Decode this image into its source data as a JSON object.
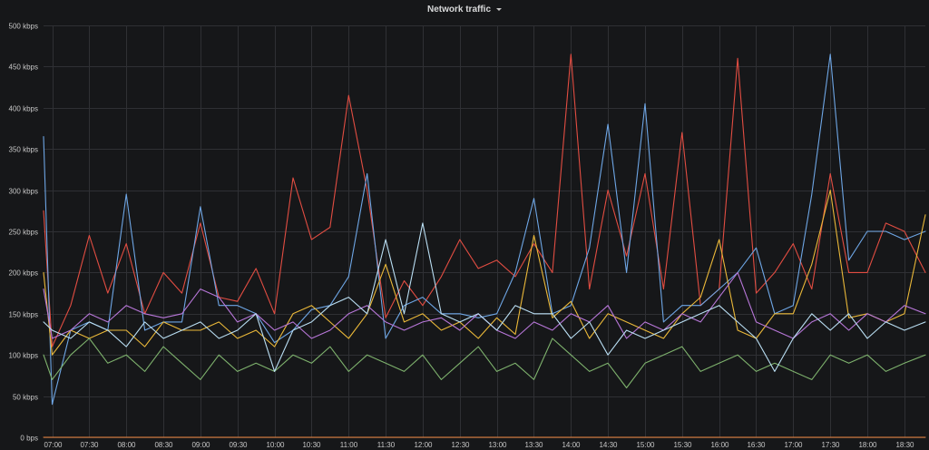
{
  "panel": {
    "title": "Network traffic"
  },
  "chart_data": {
    "type": "line",
    "title": "Network traffic",
    "grid": true,
    "legend": "none",
    "x_domain": [
      "06:53",
      "18:47"
    ],
    "y_range_bps": [
      0,
      500000
    ],
    "y_ticks": [
      {
        "value": 0,
        "label": "0 bps"
      },
      {
        "value": 50000,
        "label": "50 kbps"
      },
      {
        "value": 100000,
        "label": "100 kbps"
      },
      {
        "value": 150000,
        "label": "150 kbps"
      },
      {
        "value": 200000,
        "label": "200 kbps"
      },
      {
        "value": 250000,
        "label": "250 kbps"
      },
      {
        "value": 300000,
        "label": "300 kbps"
      },
      {
        "value": 350000,
        "label": "350 kbps"
      },
      {
        "value": 400000,
        "label": "400 kbps"
      },
      {
        "value": 450000,
        "label": "450 kbps"
      },
      {
        "value": 500000,
        "label": "500 kbps"
      }
    ],
    "x_ticks": [
      "07:00",
      "07:30",
      "08:00",
      "08:30",
      "09:00",
      "09:30",
      "10:00",
      "10:30",
      "11:00",
      "11:30",
      "12:00",
      "12:30",
      "13:00",
      "13:30",
      "14:00",
      "14:30",
      "15:00",
      "15:30",
      "16:00",
      "16:30",
      "17:00",
      "17:30",
      "18:00",
      "18:30"
    ],
    "x": [
      "06:53",
      "07:00",
      "07:15",
      "07:30",
      "07:45",
      "08:00",
      "08:15",
      "08:30",
      "08:45",
      "09:00",
      "09:15",
      "09:30",
      "09:45",
      "10:00",
      "10:15",
      "10:30",
      "10:45",
      "11:00",
      "11:15",
      "11:30",
      "11:45",
      "12:00",
      "12:15",
      "12:30",
      "12:45",
      "13:00",
      "13:15",
      "13:30",
      "13:45",
      "14:00",
      "14:15",
      "14:30",
      "14:45",
      "15:00",
      "15:15",
      "15:30",
      "15:45",
      "16:00",
      "16:15",
      "16:30",
      "16:45",
      "17:00",
      "17:15",
      "17:30",
      "17:45",
      "18:00",
      "18:15",
      "18:30",
      "18:47"
    ],
    "series": [
      {
        "color": "#e24d42",
        "values": [
          275,
          110,
          160,
          245,
          175,
          235,
          150,
          200,
          175,
          260,
          170,
          165,
          205,
          150,
          315,
          240,
          255,
          415,
          300,
          145,
          190,
          160,
          195,
          240,
          205,
          215,
          195,
          235,
          200,
          465,
          180,
          300,
          220,
          320,
          180,
          370,
          160,
          180,
          460,
          175,
          200,
          235,
          180,
          320,
          200,
          200,
          260,
          250,
          200
        ]
      },
      {
        "color": "#6ea6e5",
        "values": [
          365,
          40,
          130,
          140,
          130,
          295,
          130,
          140,
          140,
          280,
          160,
          160,
          150,
          115,
          130,
          155,
          160,
          195,
          320,
          120,
          160,
          170,
          150,
          150,
          145,
          150,
          200,
          290,
          150,
          160,
          230,
          380,
          200,
          405,
          140,
          160,
          160,
          180,
          200,
          230,
          150,
          160,
          295,
          465,
          215,
          250,
          250,
          240,
          250
        ]
      },
      {
        "color": "#eab839",
        "values": [
          200,
          100,
          130,
          120,
          130,
          130,
          110,
          140,
          130,
          130,
          140,
          120,
          130,
          110,
          150,
          160,
          140,
          120,
          150,
          210,
          140,
          150,
          130,
          140,
          120,
          145,
          125,
          245,
          145,
          165,
          120,
          150,
          140,
          130,
          120,
          150,
          170,
          240,
          130,
          120,
          150,
          150,
          210,
          300,
          145,
          150,
          140,
          150,
          270
        ]
      },
      {
        "color": "#b877d9",
        "values": [
          180,
          120,
          130,
          150,
          140,
          160,
          150,
          145,
          150,
          180,
          170,
          140,
          150,
          130,
          140,
          120,
          130,
          150,
          160,
          140,
          130,
          140,
          145,
          130,
          150,
          130,
          120,
          140,
          130,
          150,
          140,
          160,
          120,
          140,
          130,
          150,
          140,
          170,
          200,
          140,
          130,
          120,
          140,
          150,
          130,
          150,
          140,
          160,
          150
        ]
      },
      {
        "color": "#7eb26d",
        "values": [
          100,
          70,
          100,
          120,
          90,
          100,
          80,
          110,
          90,
          70,
          100,
          80,
          90,
          80,
          100,
          90,
          110,
          80,
          100,
          90,
          80,
          100,
          70,
          90,
          110,
          80,
          90,
          70,
          120,
          100,
          80,
          90,
          60,
          90,
          100,
          110,
          80,
          90,
          100,
          80,
          90,
          80,
          70,
          100,
          90,
          100,
          80,
          90,
          100
        ]
      },
      {
        "color": "#badff4",
        "values": [
          140,
          130,
          120,
          140,
          130,
          110,
          140,
          120,
          130,
          140,
          120,
          130,
          150,
          80,
          130,
          140,
          160,
          170,
          150,
          240,
          150,
          260,
          150,
          140,
          150,
          130,
          160,
          150,
          150,
          120,
          140,
          100,
          130,
          120,
          130,
          140,
          150,
          160,
          140,
          120,
          80,
          120,
          150,
          130,
          150,
          120,
          140,
          130,
          140
        ]
      },
      {
        "color": "#ef843c",
        "values": [
          0,
          0,
          0,
          0,
          0,
          0,
          0,
          0,
          0,
          0,
          0,
          0,
          0,
          0,
          0,
          0,
          0,
          0,
          0,
          0,
          0,
          0,
          0,
          0,
          0,
          0,
          0,
          0,
          0,
          0,
          0,
          0,
          0,
          0,
          0,
          0,
          0,
          0,
          0,
          0,
          0,
          0,
          0,
          0,
          0,
          0,
          0,
          0,
          0
        ]
      }
    ]
  }
}
